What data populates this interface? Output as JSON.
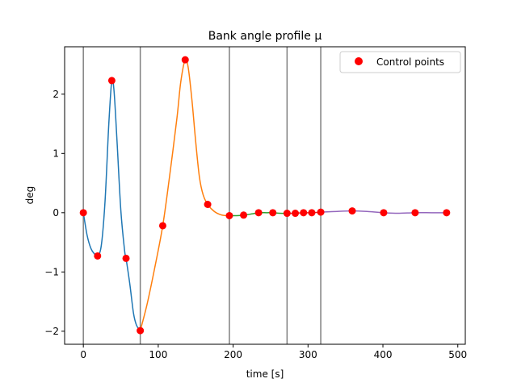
{
  "chart_data": {
    "type": "line",
    "title": "Bank angle profile μ",
    "xlabel": "time [s]",
    "ylabel": "deg",
    "xlim": [
      -25,
      510
    ],
    "ylim": [
      -2.22,
      2.8
    ],
    "xticks": [
      0,
      100,
      200,
      300,
      400,
      500
    ],
    "yticks": [
      -2,
      -1,
      0,
      1,
      2
    ],
    "xtick_labels": [
      "0",
      "100",
      "200",
      "300",
      "400",
      "500"
    ],
    "ytick_labels": [
      "−2",
      "−1",
      "0",
      "1",
      "2"
    ],
    "grid": false,
    "legend": {
      "position": "upper-right",
      "entries": [
        "Control points"
      ]
    },
    "vertical_lines": [
      0,
      76,
      195,
      272,
      317
    ],
    "colors": {
      "segment_1": "#1f77b4",
      "segment_2": "#ff7f0e",
      "segment_3": "#2ca02c",
      "segment_4": "#d62728",
      "segment_5": "#9467bd",
      "control_points": "#ff0000",
      "vertical_lines": "#808080"
    },
    "series": [
      {
        "x": [
          0,
          5,
          10,
          15,
          19,
          24,
          29,
          34,
          38,
          41,
          45,
          50,
          55,
          57,
          62,
          67,
          71,
          76
        ],
        "y": [
          0,
          -0.38,
          -0.6,
          -0.7,
          -0.73,
          -0.55,
          0.2,
          1.5,
          2.23,
          2.05,
          1.2,
          0.05,
          -0.63,
          -0.77,
          -1.2,
          -1.7,
          -1.9,
          -1.99
        ]
      },
      {
        "x": [
          76,
          85,
          95,
          106,
          115,
          125,
          130,
          136,
          140,
          145,
          150,
          155,
          160,
          166,
          175,
          185,
          195
        ],
        "y": [
          -1.99,
          -1.55,
          -0.95,
          -0.22,
          0.6,
          1.6,
          2.2,
          2.58,
          2.45,
          1.9,
          1.2,
          0.6,
          0.3,
          0.14,
          0.02,
          -0.04,
          -0.05
        ]
      },
      {
        "x": [
          195,
          205,
          215,
          225,
          235,
          245,
          253,
          262,
          272
        ],
        "y": [
          -0.05,
          -0.05,
          -0.04,
          -0.02,
          0.0,
          0.0,
          0.0,
          -0.01,
          -0.01
        ]
      },
      {
        "x": [
          272,
          283,
          294,
          305,
          317
        ],
        "y": [
          -0.01,
          -0.01,
          0.0,
          0.0,
          0.01
        ]
      },
      {
        "x": [
          317,
          335,
          359,
          380,
          401,
          420,
          443,
          465,
          485
        ],
        "y": [
          0.01,
          0.02,
          0.03,
          0.02,
          0.0,
          -0.01,
          0.0,
          0.0,
          0.0
        ]
      }
    ],
    "control_points": {
      "x": [
        0,
        19,
        38,
        57,
        76,
        106,
        136,
        166,
        195,
        214,
        234,
        253,
        272,
        283,
        294,
        305,
        317,
        359,
        401,
        443,
        485
      ],
      "y": [
        0,
        -0.73,
        2.23,
        -0.77,
        -1.99,
        -0.22,
        2.58,
        0.14,
        -0.05,
        -0.04,
        0.0,
        0.0,
        -0.01,
        -0.01,
        0.0,
        0.0,
        0.01,
        0.03,
        0.0,
        0.0,
        0.0
      ]
    }
  }
}
